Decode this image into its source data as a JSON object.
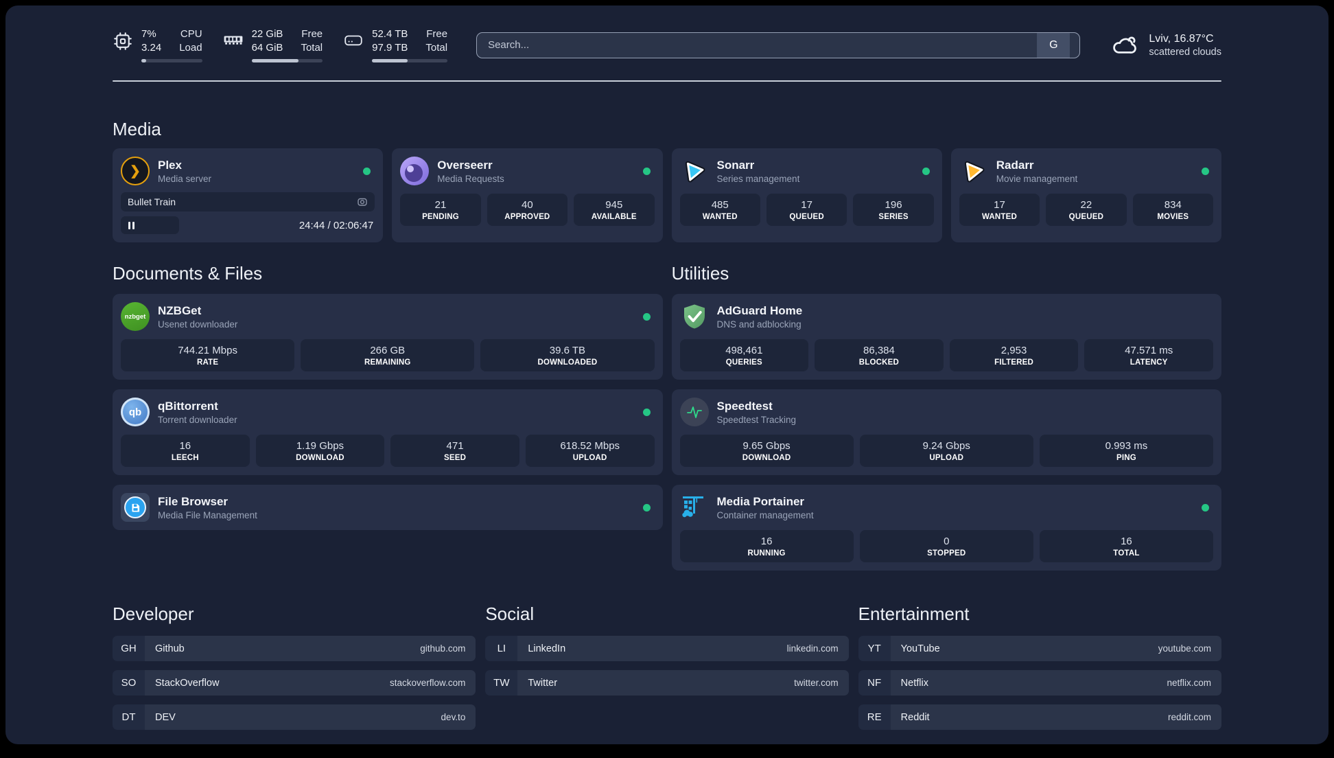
{
  "header": {
    "system_stats": [
      {
        "icon": "cpu-icon",
        "values": [
          "7%",
          "3.24"
        ],
        "labels": [
          "CPU",
          "Load"
        ],
        "progress_pct": 8
      },
      {
        "icon": "ram-icon",
        "values": [
          "22 GiB",
          "64 GiB"
        ],
        "labels": [
          "Free",
          "Total"
        ],
        "progress_pct": 66
      },
      {
        "icon": "disk-icon",
        "values": [
          "52.4 TB",
          "97.9 TB"
        ],
        "labels": [
          "Free",
          "Total"
        ],
        "progress_pct": 47
      }
    ],
    "search": {
      "placeholder": "Search...",
      "button_label": "G"
    },
    "weather": {
      "location": "Lviv, 16.87°C",
      "condition": "scattered clouds"
    }
  },
  "media": {
    "section_title": "Media",
    "plex": {
      "name": "Plex",
      "subtitle": "Media server",
      "now_playing": "Bullet Train",
      "time": "24:44 / 02:06:47"
    },
    "apps": [
      {
        "name": "Overseerr",
        "subtitle": "Media Requests",
        "stats": [
          {
            "value": "21",
            "label": "PENDING"
          },
          {
            "value": "40",
            "label": "APPROVED"
          },
          {
            "value": "945",
            "label": "AVAILABLE"
          }
        ]
      },
      {
        "name": "Sonarr",
        "subtitle": "Series management",
        "stats": [
          {
            "value": "485",
            "label": "WANTED"
          },
          {
            "value": "17",
            "label": "QUEUED"
          },
          {
            "value": "196",
            "label": "SERIES"
          }
        ]
      },
      {
        "name": "Radarr",
        "subtitle": "Movie management",
        "stats": [
          {
            "value": "17",
            "label": "WANTED"
          },
          {
            "value": "22",
            "label": "QUEUED"
          },
          {
            "value": "834",
            "label": "MOVIES"
          }
        ]
      }
    ]
  },
  "documents": {
    "section_title": "Documents & Files",
    "apps": [
      {
        "name": "NZBGet",
        "subtitle": "Usenet downloader",
        "icon_text": "nzbget",
        "stats": [
          {
            "value": "744.21 Mbps",
            "label": "RATE"
          },
          {
            "value": "266 GB",
            "label": "REMAINING"
          },
          {
            "value": "39.6 TB",
            "label": "DOWNLOADED"
          }
        ]
      },
      {
        "name": "qBittorrent",
        "subtitle": "Torrent downloader",
        "icon_text": "qb",
        "stats": [
          {
            "value": "16",
            "label": "LEECH"
          },
          {
            "value": "1.19 Gbps",
            "label": "DOWNLOAD"
          },
          {
            "value": "471",
            "label": "SEED"
          },
          {
            "value": "618.52 Mbps",
            "label": "UPLOAD"
          }
        ]
      },
      {
        "name": "File Browser",
        "subtitle": "Media File Management",
        "stats": []
      }
    ]
  },
  "utilities": {
    "section_title": "Utilities",
    "apps": [
      {
        "name": "AdGuard Home",
        "subtitle": "DNS and adblocking",
        "stats": [
          {
            "value": "498,461",
            "label": "QUERIES"
          },
          {
            "value": "86,384",
            "label": "BLOCKED"
          },
          {
            "value": "2,953",
            "label": "FILTERED"
          },
          {
            "value": "47.571 ms",
            "label": "LATENCY"
          }
        ]
      },
      {
        "name": "Speedtest",
        "subtitle": "Speedtest Tracking",
        "stats": [
          {
            "value": "9.65 Gbps",
            "label": "DOWNLOAD"
          },
          {
            "value": "9.24 Gbps",
            "label": "UPLOAD"
          },
          {
            "value": "0.993 ms",
            "label": "PING"
          }
        ]
      },
      {
        "name": "Media Portainer",
        "subtitle": "Container management",
        "stats": [
          {
            "value": "16",
            "label": "RUNNING"
          },
          {
            "value": "0",
            "label": "STOPPED"
          },
          {
            "value": "16",
            "label": "TOTAL"
          }
        ]
      }
    ]
  },
  "bookmarks": [
    {
      "section_title": "Developer",
      "links": [
        {
          "abbr": "GH",
          "name": "Github",
          "url": "github.com"
        },
        {
          "abbr": "SO",
          "name": "StackOverflow",
          "url": "stackoverflow.com"
        },
        {
          "abbr": "DT",
          "name": "DEV",
          "url": "dev.to"
        }
      ]
    },
    {
      "section_title": "Social",
      "links": [
        {
          "abbr": "LI",
          "name": "LinkedIn",
          "url": "linkedin.com"
        },
        {
          "abbr": "TW",
          "name": "Twitter",
          "url": "twitter.com"
        }
      ]
    },
    {
      "section_title": "Entertainment",
      "links": [
        {
          "abbr": "YT",
          "name": "YouTube",
          "url": "youtube.com"
        },
        {
          "abbr": "NF",
          "name": "Netflix",
          "url": "netflix.com"
        },
        {
          "abbr": "RE",
          "name": "Reddit",
          "url": "reddit.com"
        }
      ]
    }
  ],
  "colors": {
    "status_online": "#25c685",
    "plex_accent": "#e5a00d"
  }
}
